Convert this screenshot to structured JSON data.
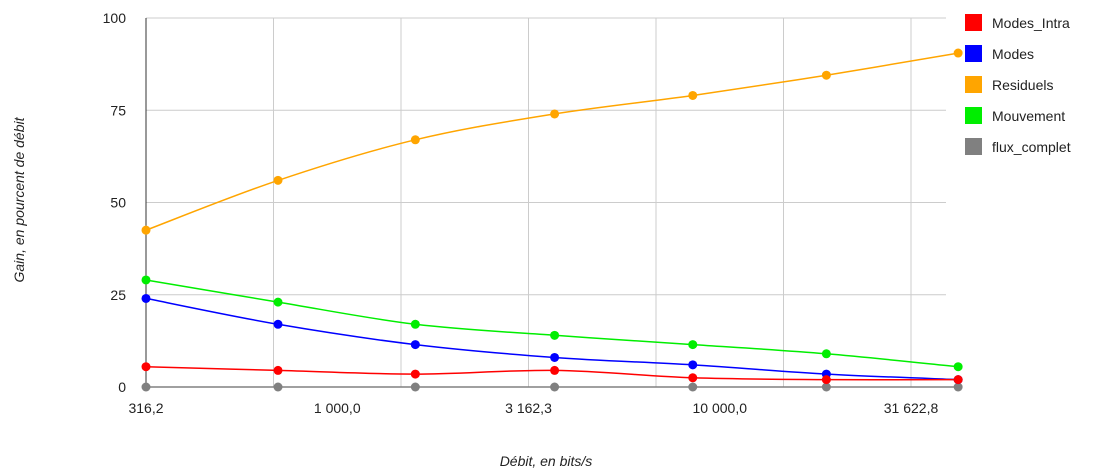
{
  "chart_data": {
    "type": "line",
    "title": "",
    "xlabel": "Débit, en bits/s",
    "ylabel": "Gain, en pourcent de débit",
    "x_scale": "log",
    "x": [
      316.2,
      700,
      1600,
      3700,
      8500,
      19000,
      42000
    ],
    "x_ticks": [
      316.2,
      1000,
      3162.3,
      10000,
      31622.8
    ],
    "x_tick_labels": [
      "316,2",
      "1 000,0",
      "3 162,3",
      "10 000,0",
      "31 622,8"
    ],
    "ylim": [
      0,
      100
    ],
    "y_ticks": [
      0,
      25,
      50,
      75,
      100
    ],
    "y_tick_labels": [
      "0",
      "25",
      "50",
      "75",
      "100"
    ],
    "grid": true,
    "legend_position": "right",
    "series": [
      {
        "name": "Modes_Intra",
        "color": "#ff0000",
        "values": [
          5.5,
          4.5,
          3.5,
          4.5,
          2.5,
          2,
          2
        ]
      },
      {
        "name": "Modes",
        "color": "#0000ff",
        "values": [
          24,
          17,
          11.5,
          8,
          6,
          3.5,
          2
        ]
      },
      {
        "name": "Residuels",
        "color": "#ffa500",
        "values": [
          42.5,
          56,
          67,
          74,
          79,
          84.5,
          90.5
        ]
      },
      {
        "name": "Mouvement",
        "color": "#00ee00",
        "values": [
          29,
          23,
          17,
          14,
          11.5,
          9,
          5.5
        ]
      },
      {
        "name": "flux_complet",
        "color": "#808080",
        "values": [
          0,
          0,
          0,
          0,
          0,
          0,
          0
        ]
      }
    ]
  }
}
